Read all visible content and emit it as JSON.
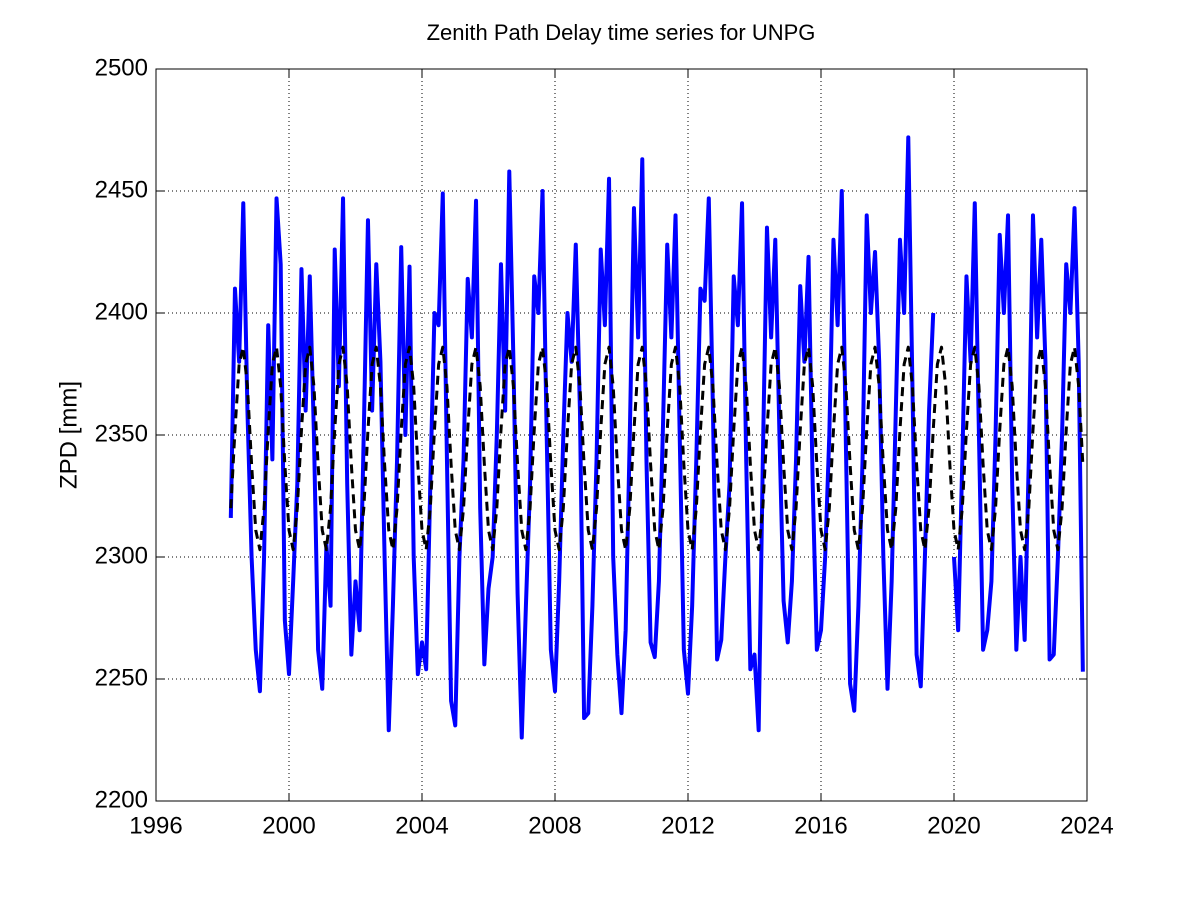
{
  "chart_data": {
    "type": "line",
    "title": "Zenith Path Delay time series for UNPG",
    "y_label": "ZPD [mm]",
    "xlim": [
      1996,
      2024
    ],
    "xticks": [
      1996,
      2000,
      2004,
      2008,
      2012,
      2016,
      2020,
      2024
    ],
    "ylim": [
      2200,
      2500
    ],
    "yticks": [
      2200,
      2250,
      2300,
      2350,
      2400,
      2450,
      2500
    ],
    "grid": true,
    "x": [
      1998.25,
      1998.375,
      1998.5,
      1998.625,
      1998.75,
      1998.875,
      1999,
      1999.125,
      1999.25,
      1999.375,
      1999.5,
      1999.625,
      1999.75,
      1999.875,
      2000,
      2000.125,
      2000.25,
      2000.375,
      2000.5,
      2000.625,
      2000.75,
      2000.875,
      2001,
      2001.125,
      2001.25,
      2001.375,
      2001.5,
      2001.625,
      2001.75,
      2001.875,
      2002,
      2002.125,
      2002.25,
      2002.375,
      2002.5,
      2002.625,
      2002.75,
      2002.875,
      2003,
      2003.125,
      2003.25,
      2003.375,
      2003.5,
      2003.625,
      2003.75,
      2003.875,
      2004,
      2004.125,
      2004.25,
      2004.375,
      2004.5,
      2004.625,
      2004.75,
      2004.875,
      2005,
      2005.125,
      2005.25,
      2005.375,
      2005.5,
      2005.625,
      2005.75,
      2005.875,
      2006,
      2006.125,
      2006.25,
      2006.375,
      2006.5,
      2006.625,
      2006.75,
      2006.875,
      2007,
      2007.125,
      2007.25,
      2007.375,
      2007.5,
      2007.625,
      2007.75,
      2007.875,
      2008,
      2008.125,
      2008.25,
      2008.375,
      2008.5,
      2008.625,
      2008.75,
      2008.875,
      2009,
      2009.125,
      2009.25,
      2009.375,
      2009.5,
      2009.625,
      2009.75,
      2009.875,
      2010,
      2010.125,
      2010.25,
      2010.375,
      2010.5,
      2010.625,
      2010.75,
      2010.875,
      2011,
      2011.125,
      2011.25,
      2011.375,
      2011.5,
      2011.625,
      2011.75,
      2011.875,
      2012,
      2012.125,
      2012.25,
      2012.375,
      2012.5,
      2012.625,
      2012.75,
      2012.875,
      2013,
      2013.125,
      2013.25,
      2013.375,
      2013.5,
      2013.625,
      2013.75,
      2013.875,
      2014,
      2014.125,
      2014.25,
      2014.375,
      2014.5,
      2014.625,
      2014.75,
      2014.875,
      2015,
      2015.125,
      2015.25,
      2015.375,
      2015.5,
      2015.625,
      2015.75,
      2015.875,
      2016,
      2016.125,
      2016.25,
      2016.375,
      2016.5,
      2016.625,
      2016.75,
      2016.875,
      2017,
      2017.125,
      2017.25,
      2017.375,
      2017.5,
      2017.625,
      2017.75,
      2017.875,
      2018,
      2018.125,
      2018.25,
      2018.375,
      2018.5,
      2018.625,
      2018.75,
      2018.875,
      2019,
      2019.125,
      2019.25,
      2019.375,
      2019.5,
      2019.625,
      2019.75,
      2019.875,
      2020,
      2020.125,
      2020.25,
      2020.375,
      2020.5,
      2020.625,
      2020.75,
      2020.875,
      2021,
      2021.125,
      2021.25,
      2021.375,
      2021.5,
      2021.625,
      2021.75,
      2021.875,
      2022,
      2022.125,
      2022.25,
      2022.375,
      2022.5,
      2022.625,
      2022.75,
      2022.875,
      2023,
      2023.125,
      2023.25,
      2023.375,
      2023.5,
      2023.625,
      2023.75,
      2023.875
    ],
    "series": [
      {
        "color": "#0000ff",
        "linestyle": "solid",
        "values": [
          2316,
          2410,
          2380,
          2445,
          2360,
          2300,
          2262,
          2245,
          2300,
          2395,
          2340,
          2447,
          2420,
          2274,
          2252,
          2290,
          2330,
          2418,
          2360,
          2415,
          2350,
          2262,
          2246,
          2305,
          2280,
          2426,
          2370,
          2447,
          2330,
          2260,
          2290,
          2270,
          2352,
          2438,
          2360,
          2420,
          2380,
          2300,
          2229,
          2280,
          2340,
          2427,
          2350,
          2419,
          2300,
          2252,
          2265,
          2254,
          2330,
          2400,
          2395,
          2449,
          2340,
          2241,
          2231,
          2300,
          2340,
          2414,
          2390,
          2446,
          2320,
          2256,
          2287,
          2300,
          2350,
          2420,
          2360,
          2458,
          2380,
          2285,
          2226,
          2280,
          2330,
          2415,
          2400,
          2450,
          2350,
          2262,
          2245,
          2290,
          2350,
          2400,
          2380,
          2428,
          2360,
          2234,
          2236,
          2280,
          2340,
          2426,
          2395,
          2455,
          2300,
          2260,
          2236,
          2270,
          2350,
          2443,
          2390,
          2463,
          2340,
          2265,
          2259,
          2290,
          2355,
          2428,
          2390,
          2440,
          2350,
          2262,
          2244,
          2280,
          2340,
          2410,
          2405,
          2447,
          2360,
          2258,
          2266,
          2300,
          2330,
          2415,
          2395,
          2445,
          2340,
          2254,
          2260,
          2229,
          2340,
          2435,
          2390,
          2430,
          2350,
          2282,
          2265,
          2290,
          2340,
          2411,
          2380,
          2423,
          2330,
          2262,
          2270,
          2300,
          2350,
          2430,
          2395,
          2450,
          2345,
          2248,
          2237,
          2280,
          2340,
          2440,
          2400,
          2425,
          2380,
          2300,
          2246,
          2290,
          2360,
          2430,
          2400,
          2472,
          2370,
          2260,
          2247,
          2300,
          2360,
          2400,
          null,
          null,
          null,
          null,
          2300,
          2270,
          2340,
          2415,
          2380,
          2445,
          2350,
          2262,
          2270,
          2290,
          2350,
          2432,
          2400,
          2440,
          2330,
          2262,
          2300,
          2266,
          2340,
          2440,
          2390,
          2430,
          2380,
          2258,
          2260,
          2300,
          2350,
          2420,
          2400,
          2443,
          2380,
          2253
        ]
      },
      {
        "color": "#000000",
        "linestyle": "dashed",
        "values": [
          2320,
          2352,
          2379,
          2386,
          2370,
          2338,
          2311,
          2303,
          2320,
          2352,
          2379,
          2386,
          2370,
          2338,
          2311,
          2303,
          2320,
          2352,
          2379,
          2386,
          2370,
          2338,
          2311,
          2303,
          2320,
          2352,
          2379,
          2386,
          2370,
          2338,
          2311,
          2303,
          2320,
          2352,
          2379,
          2386,
          2370,
          2338,
          2311,
          2303,
          2320,
          2352,
          2379,
          2386,
          2370,
          2338,
          2311,
          2303,
          2320,
          2352,
          2379,
          2386,
          2370,
          2338,
          2311,
          2303,
          2320,
          2352,
          2379,
          2386,
          2370,
          2338,
          2311,
          2303,
          2320,
          2352,
          2379,
          2386,
          2370,
          2338,
          2311,
          2303,
          2320,
          2352,
          2379,
          2386,
          2370,
          2338,
          2311,
          2303,
          2320,
          2352,
          2379,
          2386,
          2370,
          2338,
          2311,
          2303,
          2320,
          2352,
          2379,
          2386,
          2370,
          2338,
          2311,
          2303,
          2320,
          2352,
          2379,
          2386,
          2370,
          2338,
          2311,
          2303,
          2320,
          2352,
          2379,
          2386,
          2370,
          2338,
          2311,
          2303,
          2320,
          2352,
          2379,
          2386,
          2370,
          2338,
          2311,
          2303,
          2320,
          2352,
          2379,
          2386,
          2370,
          2338,
          2311,
          2303,
          2320,
          2352,
          2379,
          2386,
          2370,
          2338,
          2311,
          2303,
          2320,
          2352,
          2379,
          2386,
          2370,
          2338,
          2311,
          2303,
          2320,
          2352,
          2379,
          2386,
          2370,
          2338,
          2311,
          2303,
          2320,
          2352,
          2379,
          2386,
          2370,
          2338,
          2311,
          2303,
          2320,
          2352,
          2379,
          2386,
          2370,
          2338,
          2311,
          2303,
          2320,
          2352,
          2379,
          2386,
          2370,
          2338,
          2311,
          2303,
          2320,
          2352,
          2379,
          2386,
          2370,
          2338,
          2311,
          2303,
          2320,
          2352,
          2379,
          2386,
          2370,
          2338,
          2311,
          2303,
          2320,
          2352,
          2379,
          2386,
          2370,
          2338,
          2311,
          2303,
          2320,
          2352,
          2379,
          2386,
          2370,
          2338
        ]
      }
    ]
  }
}
